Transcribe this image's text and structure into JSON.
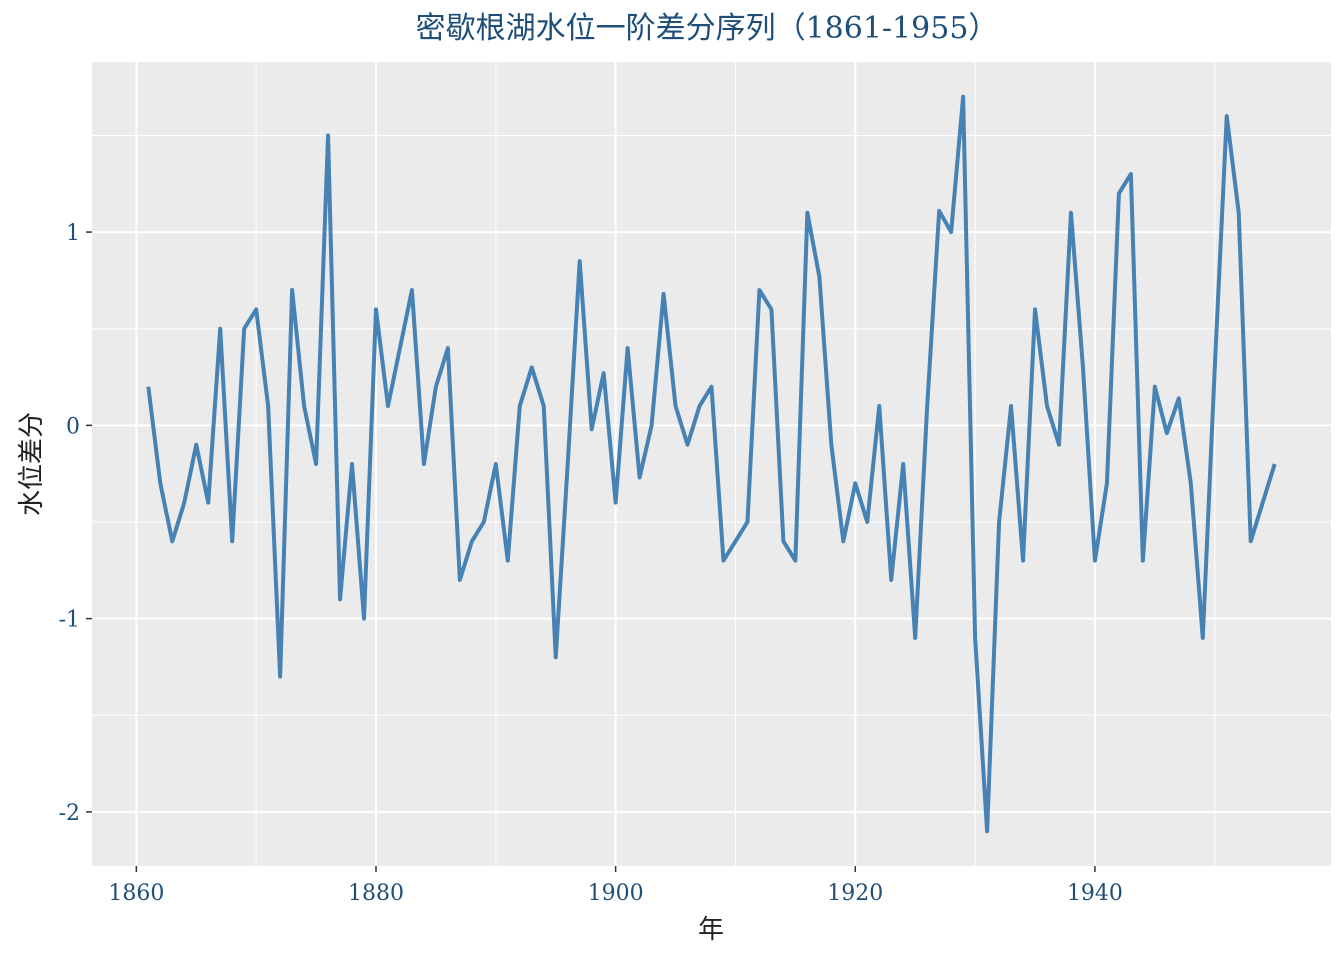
{
  "chart_data": {
    "type": "line",
    "title": "密歇根湖水位一阶差分序列（1861-1955）",
    "xlabel": "年",
    "ylabel": "水位差分",
    "xlim": [
      1856.3,
      1959.7
    ],
    "ylim": [
      -2.28,
      1.88
    ],
    "x_ticks": [
      1860,
      1880,
      1900,
      1920,
      1940
    ],
    "x_tick_labels": [
      "1860",
      "1880",
      "1900",
      "1920",
      "1940"
    ],
    "y_ticks": [
      -2,
      -1,
      0,
      1
    ],
    "y_tick_labels": [
      "-2",
      "-1",
      "0",
      "1"
    ],
    "grid": true,
    "panel_background": "#ebebeb",
    "grid_color": "#ffffff",
    "line_color": "#4682b4",
    "title_color": "#1f4e79",
    "tick_label_color": "#1f4e79",
    "series": [
      {
        "x": [
          1861,
          1862,
          1863,
          1864,
          1865,
          1866,
          1867,
          1868,
          1869,
          1870,
          1871,
          1872,
          1873,
          1874,
          1875,
          1876,
          1877,
          1878,
          1879,
          1880,
          1881,
          1882,
          1883,
          1884,
          1885,
          1886,
          1887,
          1888,
          1889,
          1890,
          1891,
          1892,
          1893,
          1894,
          1895,
          1896,
          1897,
          1898,
          1899,
          1900,
          1901,
          1902,
          1903,
          1904,
          1905,
          1906,
          1907,
          1908,
          1909,
          1910,
          1911,
          1912,
          1913,
          1914,
          1915,
          1916,
          1917,
          1918,
          1919,
          1920,
          1921,
          1922,
          1923,
          1924,
          1925,
          1926,
          1927,
          1928,
          1929,
          1930,
          1931,
          1932,
          1933,
          1934,
          1935,
          1936,
          1937,
          1938,
          1939,
          1940,
          1941,
          1942,
          1943,
          1944,
          1945,
          1946,
          1947,
          1948,
          1949,
          1950,
          1951,
          1952,
          1953,
          1954,
          1955
        ],
        "values": [
          0.2,
          -0.3,
          -0.6,
          -0.4,
          -0.1,
          -0.4,
          0.5,
          -0.6,
          0.5,
          0.6,
          0.1,
          -1.3,
          0.7,
          0.1,
          -0.2,
          1.5,
          -0.9,
          -0.2,
          -1.0,
          0.6,
          0.1,
          0.4,
          0.7,
          -0.2,
          0.2,
          0.4,
          -0.8,
          -0.6,
          -0.5,
          -0.2,
          -0.7,
          0.1,
          0.3,
          0.1,
          -1.2,
          -0.2,
          0.85,
          -0.02,
          0.27,
          -0.4,
          0.4,
          -0.27,
          0.0,
          0.68,
          0.1,
          -0.1,
          0.1,
          0.2,
          -0.7,
          -0.6,
          -0.5,
          0.7,
          0.6,
          -0.6,
          -0.7,
          1.1,
          0.77,
          -0.1,
          -0.6,
          -0.3,
          -0.5,
          0.1,
          -0.8,
          -0.2,
          -1.1,
          0.1,
          1.11,
          1.0,
          1.7,
          -1.1,
          -2.1,
          -0.5,
          0.1,
          -0.7,
          0.6,
          0.1,
          -0.1,
          1.1,
          0.3,
          -0.7,
          -0.3,
          1.2,
          1.3,
          -0.7,
          0.2,
          -0.04,
          0.14,
          -0.3,
          -1.1,
          0.3,
          1.6,
          1.1,
          -0.6,
          -0.4,
          -0.2
        ]
      }
    ]
  }
}
